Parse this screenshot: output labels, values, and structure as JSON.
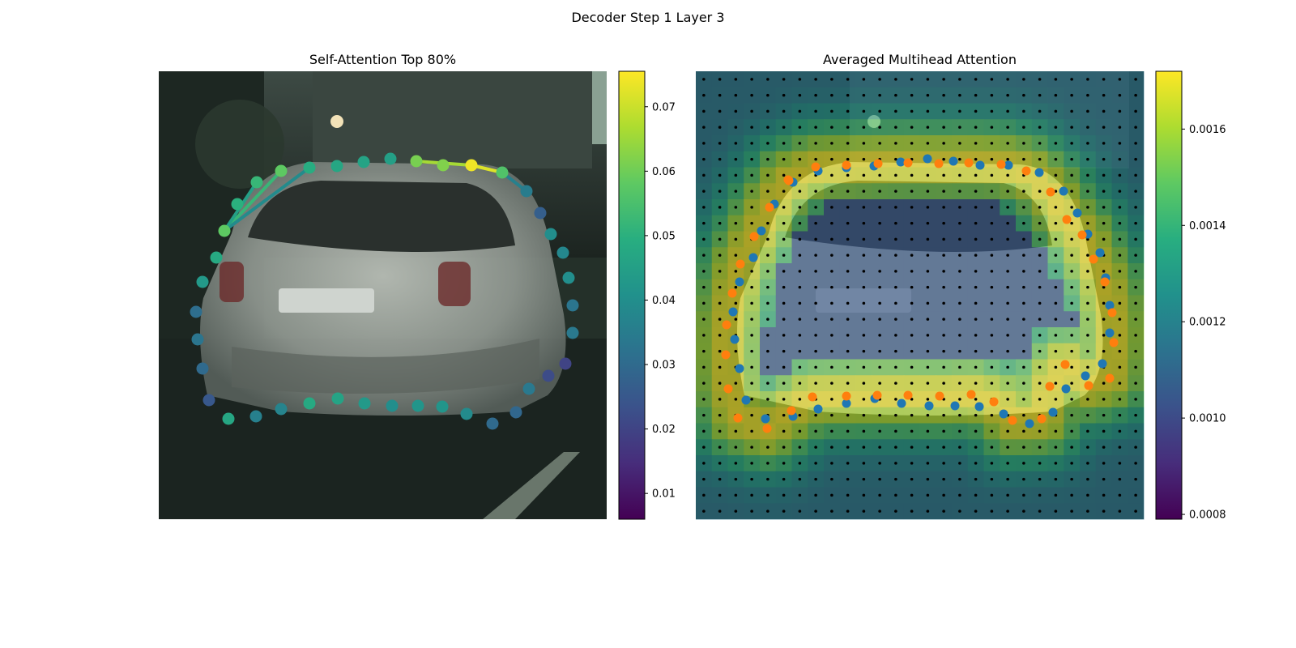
{
  "figure": {
    "title": "Decoder Step 1 Layer 3"
  },
  "chart_data": [
    {
      "type": "scatter",
      "title": "Self-Attention Top 80%",
      "xlim": [
        0,
        552
      ],
      "ylim": [
        552,
        0
      ],
      "axes_visible": false,
      "background": "photo: rear view of silver hatchback car on a city street (tinted dark teal)",
      "colormap": "viridis",
      "colorbar": {
        "min": 0.006,
        "max": 0.0755,
        "ticks": [
          0.01,
          0.02,
          0.03,
          0.04,
          0.05,
          0.06,
          0.07
        ],
        "tick_labels": [
          "0.01",
          "0.02",
          "0.03",
          "0.04",
          "0.05",
          "0.06",
          "0.07"
        ]
      },
      "points": [
        {
          "x": 81,
          "y": 197,
          "v": 0.058
        },
        {
          "x": 97,
          "y": 164,
          "v": 0.05
        },
        {
          "x": 121,
          "y": 137,
          "v": 0.052
        },
        {
          "x": 151,
          "y": 123,
          "v": 0.058
        },
        {
          "x": 186,
          "y": 119,
          "v": 0.049
        },
        {
          "x": 220,
          "y": 117,
          "v": 0.047
        },
        {
          "x": 253,
          "y": 112,
          "v": 0.046
        },
        {
          "x": 286,
          "y": 108,
          "v": 0.045
        },
        {
          "x": 318,
          "y": 111,
          "v": 0.061
        },
        {
          "x": 351,
          "y": 116,
          "v": 0.062
        },
        {
          "x": 386,
          "y": 116,
          "v": 0.074
        },
        {
          "x": 424,
          "y": 125,
          "v": 0.056
        },
        {
          "x": 454,
          "y": 148,
          "v": 0.035
        },
        {
          "x": 471,
          "y": 175,
          "v": 0.027
        },
        {
          "x": 484,
          "y": 201,
          "v": 0.04
        },
        {
          "x": 499,
          "y": 224,
          "v": 0.038
        },
        {
          "x": 506,
          "y": 255,
          "v": 0.04
        },
        {
          "x": 511,
          "y": 289,
          "v": 0.033
        },
        {
          "x": 511,
          "y": 323,
          "v": 0.034
        },
        {
          "x": 502,
          "y": 361,
          "v": 0.02
        },
        {
          "x": 481,
          "y": 376,
          "v": 0.022
        },
        {
          "x": 457,
          "y": 392,
          "v": 0.034
        },
        {
          "x": 441,
          "y": 421,
          "v": 0.029
        },
        {
          "x": 412,
          "y": 435,
          "v": 0.03
        },
        {
          "x": 380,
          "y": 423,
          "v": 0.039
        },
        {
          "x": 350,
          "y": 414,
          "v": 0.042
        },
        {
          "x": 320,
          "y": 413,
          "v": 0.042
        },
        {
          "x": 288,
          "y": 413,
          "v": 0.04
        },
        {
          "x": 254,
          "y": 410,
          "v": 0.043
        },
        {
          "x": 221,
          "y": 404,
          "v": 0.046
        },
        {
          "x": 186,
          "y": 410,
          "v": 0.048
        },
        {
          "x": 151,
          "y": 417,
          "v": 0.037
        },
        {
          "x": 120,
          "y": 426,
          "v": 0.036
        },
        {
          "x": 86,
          "y": 429,
          "v": 0.047
        },
        {
          "x": 62,
          "y": 406,
          "v": 0.025
        },
        {
          "x": 54,
          "y": 367,
          "v": 0.03
        },
        {
          "x": 48,
          "y": 331,
          "v": 0.033
        },
        {
          "x": 46,
          "y": 297,
          "v": 0.031
        },
        {
          "x": 54,
          "y": 260,
          "v": 0.043
        },
        {
          "x": 71,
          "y": 230,
          "v": 0.048
        }
      ],
      "edges": [
        {
          "from": 0,
          "to": 3,
          "v": 0.052
        },
        {
          "from": 0,
          "to": 4,
          "v": 0.039
        },
        {
          "from": 8,
          "to": 10,
          "v": 0.066
        },
        {
          "from": 10,
          "to": 11,
          "v": 0.072
        },
        {
          "from": 11,
          "to": 12,
          "v": 0.036
        },
        {
          "from": 0,
          "to": 2,
          "v": 0.045
        }
      ]
    },
    {
      "type": "heatmap",
      "title": "Averaged Multihead Attention",
      "xlim": [
        0,
        552
      ],
      "ylim": [
        552,
        0
      ],
      "axes_visible": false,
      "grid_size": 28,
      "colormap": "viridis",
      "overlay_alpha": 0.55,
      "colorbar": {
        "min": 0.00079,
        "max": 0.00172,
        "ticks": [
          0.0008,
          0.001,
          0.0012,
          0.0014,
          0.0016
        ],
        "tick_labels": [
          "0.0008",
          "0.0010",
          "0.0012",
          "0.0014",
          "0.0016"
        ]
      },
      "series": [
        {
          "color": "#1f77b4",
          "points": [
            [
              120,
              137
            ],
            [
              151,
              123
            ],
            [
              186,
              119
            ],
            [
              220,
              117
            ],
            [
              253,
              112
            ],
            [
              286,
              108
            ],
            [
              318,
              111
            ],
            [
              351,
              116
            ],
            [
              386,
              116
            ],
            [
              424,
              125
            ],
            [
              454,
              148
            ],
            [
              471,
              175
            ],
            [
              484,
              201
            ],
            [
              499,
              224
            ],
            [
              506,
              255
            ],
            [
              511,
              289
            ],
            [
              511,
              323
            ],
            [
              502,
              361
            ],
            [
              481,
              376
            ],
            [
              457,
              392
            ],
            [
              441,
              421
            ],
            [
              412,
              435
            ],
            [
              380,
              423
            ],
            [
              350,
              414
            ],
            [
              320,
              413
            ],
            [
              288,
              413
            ],
            [
              254,
              410
            ],
            [
              221,
              404
            ],
            [
              186,
              410
            ],
            [
              151,
              417
            ],
            [
              120,
              426
            ],
            [
              86,
              429
            ],
            [
              62,
              406
            ],
            [
              54,
              367
            ],
            [
              48,
              331
            ],
            [
              46,
              297
            ],
            [
              54,
              260
            ],
            [
              71,
              230
            ],
            [
              81,
              197
            ],
            [
              97,
              164
            ]
          ]
        },
        {
          "color": "#ff7f0e",
          "points": [
            [
              115,
              135
            ],
            [
              148,
              118
            ],
            [
              186,
              116
            ],
            [
              225,
              114
            ],
            [
              262,
              113
            ],
            [
              300,
              114
            ],
            [
              337,
              113
            ],
            [
              377,
              115
            ],
            [
              408,
              123
            ],
            [
              438,
              149
            ],
            [
              458,
              183
            ],
            [
              477,
              202
            ],
            [
              491,
              232
            ],
            [
              505,
              260
            ],
            [
              514,
              298
            ],
            [
              516,
              335
            ],
            [
              511,
              379
            ],
            [
              485,
              388
            ],
            [
              456,
              362
            ],
            [
              437,
              389
            ],
            [
              427,
              429
            ],
            [
              391,
              431
            ],
            [
              368,
              408
            ],
            [
              340,
              399
            ],
            [
              301,
              401
            ],
            [
              262,
              400
            ],
            [
              224,
              400
            ],
            [
              186,
              401
            ],
            [
              144,
              402
            ],
            [
              118,
              419
            ],
            [
              88,
              441
            ],
            [
              52,
              428
            ],
            [
              40,
              392
            ],
            [
              37,
              350
            ],
            [
              38,
              313
            ],
            [
              45,
              274
            ],
            [
              55,
              238
            ],
            [
              72,
              204
            ],
            [
              91,
              168
            ],
            [
              114,
              134
            ]
          ]
        }
      ]
    }
  ]
}
